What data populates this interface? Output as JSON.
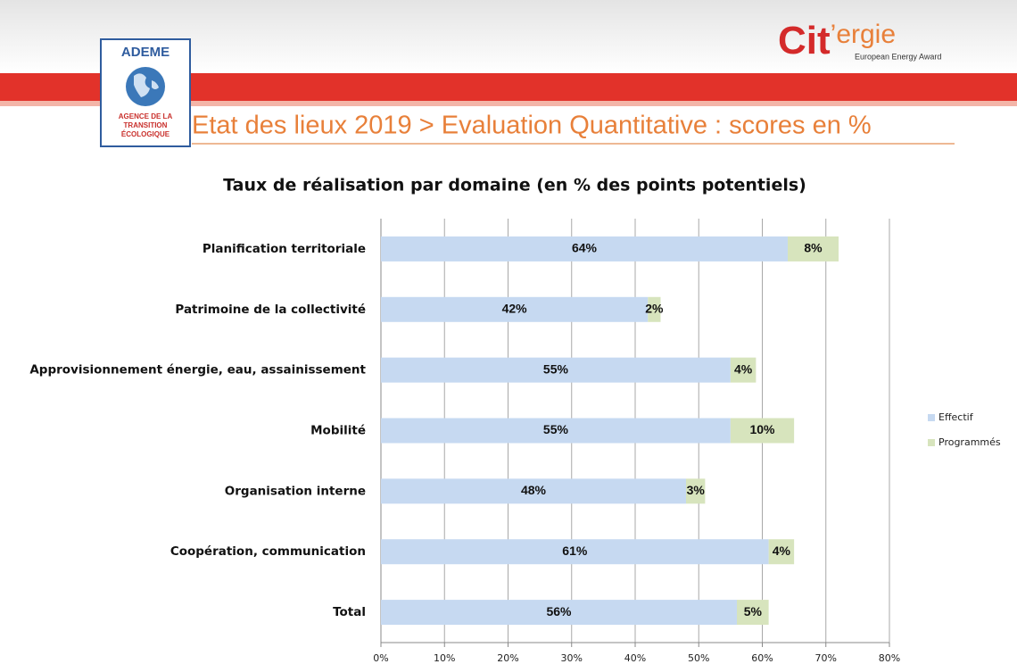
{
  "header": {
    "ademe": {
      "name": "ADEME",
      "lines": [
        "AGENCE DE LA",
        "TRANSITION",
        "ÉCOLOGIQUE"
      ]
    },
    "citergie": {
      "parts": [
        "Cit",
        "’ergie"
      ],
      "tagline": "European Energy Award"
    },
    "title": "Etat des lieux 2019 > Evaluation Quantitative : scores en %"
  },
  "chart_data": {
    "type": "stacked-barh",
    "title": "Taux de réalisation par domaine (en % des points potentiels)",
    "categories": [
      "Planification territoriale",
      "Patrimoine de la collectivité",
      "Approvisionnement énergie, eau, assainissement",
      "Mobilité",
      "Organisation interne",
      "Coopération, communication",
      "Total"
    ],
    "series": [
      {
        "name": "Effectif",
        "color": "#c6d9f1",
        "values": [
          64,
          42,
          55,
          55,
          48,
          61,
          56
        ],
        "value_labels": [
          "64%",
          "42%",
          "55%",
          "55%",
          "48%",
          "61%",
          "56%"
        ]
      },
      {
        "name": "Programmés",
        "color": "#d7e4bd",
        "values": [
          8,
          2,
          4,
          10,
          3,
          4,
          5
        ],
        "value_labels": [
          "8%",
          "2%",
          "4%",
          "10%",
          "3%",
          "4%",
          "5%"
        ]
      }
    ],
    "xlim": [
      0,
      80
    ],
    "xticks": [
      {
        "value": 0,
        "label": "0%"
      },
      {
        "value": 10,
        "label": "10%"
      },
      {
        "value": 20,
        "label": "20%"
      },
      {
        "value": 30,
        "label": "30%"
      },
      {
        "value": 40,
        "label": "40%"
      },
      {
        "value": 50,
        "label": "50%"
      },
      {
        "value": 60,
        "label": "60%"
      },
      {
        "value": 70,
        "label": "70%"
      },
      {
        "value": 80,
        "label": "80%"
      }
    ],
    "grid": true,
    "legend": "right"
  }
}
